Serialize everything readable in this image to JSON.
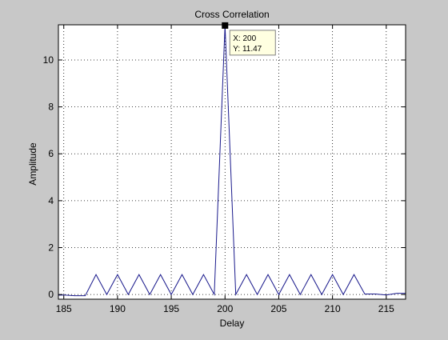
{
  "chart_data": {
    "type": "line",
    "title": "Cross Correlation",
    "xlabel": "Delay",
    "ylabel": "Amplitude",
    "xlim": [
      184.5,
      216.8
    ],
    "ylim": [
      -0.2,
      11.5
    ],
    "grid": true,
    "xticks": [
      185,
      190,
      195,
      200,
      205,
      210,
      215
    ],
    "yticks": [
      0,
      2,
      4,
      6,
      8,
      10
    ],
    "line_color": "#1a1a8c",
    "series": [
      {
        "x": [
          184.5,
          185,
          186,
          187,
          188,
          189,
          190,
          191,
          192,
          193,
          194,
          195,
          196,
          197,
          198,
          199,
          200,
          201,
          202,
          203,
          204,
          205,
          206,
          207,
          208,
          209,
          210,
          211,
          212,
          213,
          214,
          215,
          216,
          216.8
        ],
        "y": [
          -0.03,
          -0.02,
          -0.05,
          -0.05,
          0.85,
          0.0,
          0.85,
          0.0,
          0.85,
          0.0,
          0.85,
          0.0,
          0.85,
          0.0,
          0.85,
          0.0,
          11.47,
          0.0,
          0.85,
          0.0,
          0.85,
          0.0,
          0.85,
          0.0,
          0.85,
          0.0,
          0.85,
          0.0,
          0.85,
          0.02,
          0.02,
          -0.02,
          0.05,
          0.05
        ]
      }
    ],
    "datatip": {
      "x_text": "X: 200",
      "y_text": "Y: 11.47",
      "x": 200,
      "y": 11.47
    }
  }
}
